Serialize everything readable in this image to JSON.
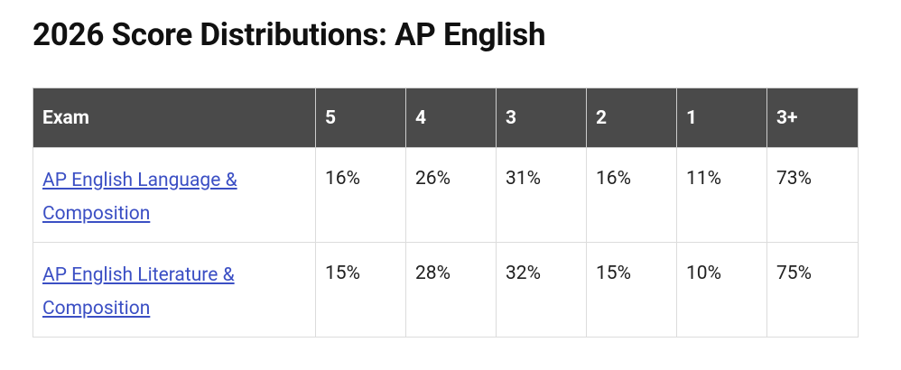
{
  "header": {
    "title": "2026 Score Distributions: AP English"
  },
  "table": {
    "columns": [
      "Exam",
      "5",
      "4",
      "3",
      "2",
      "1",
      "3+"
    ],
    "rows": [
      [
        "AP English Language & Composition",
        "16%",
        "26%",
        "31%",
        "16%",
        "11%",
        "73%"
      ],
      [
        "AP English Literature & Composition",
        "15%",
        "28%",
        "32%",
        "15%",
        "10%",
        "75%"
      ]
    ]
  }
}
